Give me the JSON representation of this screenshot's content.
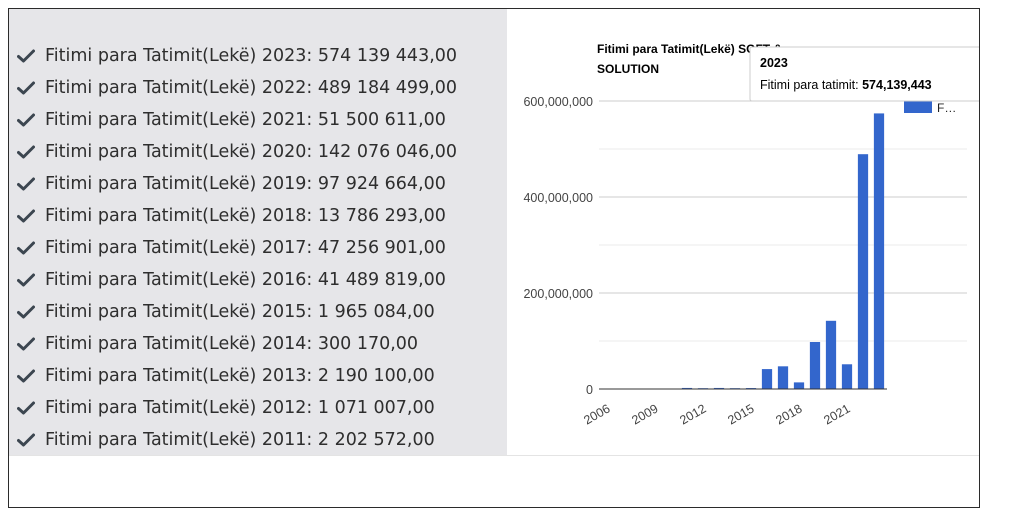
{
  "facts": [
    {
      "label": "Fitimi para Tatimit(Lekë) 2023: 574 139 443,00"
    },
    {
      "label": "Fitimi para Tatimit(Lekë) 2022: 489 184 499,00"
    },
    {
      "label": "Fitimi para Tatimit(Lekë) 2021: 51 500 611,00"
    },
    {
      "label": "Fitimi para Tatimit(Lekë) 2020: 142 076 046,00"
    },
    {
      "label": "Fitimi para Tatimit(Lekë) 2019: 97 924 664,00"
    },
    {
      "label": "Fitimi para Tatimit(Lekë) 2018: 13 786 293,00"
    },
    {
      "label": "Fitimi para Tatimit(Lekë) 2017: 47 256 901,00"
    },
    {
      "label": "Fitimi para Tatimit(Lekë) 2016: 41 489 819,00"
    },
    {
      "label": "Fitimi para Tatimit(Lekë) 2015: 1 965 084,00"
    },
    {
      "label": "Fitimi para Tatimit(Lekë) 2014: 300 170,00"
    },
    {
      "label": "Fitimi para Tatimit(Lekë) 2013: 2 190 100,00"
    },
    {
      "label": "Fitimi para Tatimit(Lekë) 2012: 1 071 007,00"
    },
    {
      "label": "Fitimi para Tatimit(Lekë) 2011: 2 202 572,00"
    }
  ],
  "chart_data": {
    "type": "bar",
    "title_line1": "Fitimi para Tatimit(Lekë) SOFT &",
    "title_line2": "SOLUTION",
    "categories": [
      "2006",
      "2007",
      "2008",
      "2009",
      "2010",
      "2011",
      "2012",
      "2013",
      "2014",
      "2015",
      "2016",
      "2017",
      "2018",
      "2019",
      "2020",
      "2021",
      "2022",
      "2023"
    ],
    "series": [
      {
        "name": "Fitimi para tatimit",
        "legend_label": "F…",
        "color": "#3366cc",
        "values": [
          0,
          0,
          0,
          0,
          0,
          2202572,
          1071007,
          2190100,
          300170,
          1965084,
          41489819,
          47256901,
          13786293,
          97924664,
          142076046,
          51500611,
          489184499,
          574139443
        ]
      }
    ],
    "x_tick_labels": [
      "2006",
      "2009",
      "2012",
      "2015",
      "2018",
      "2021"
    ],
    "y_ticks": [
      0,
      200000000,
      400000000,
      600000000
    ],
    "y_tick_labels": [
      "0",
      "200,000,000",
      "400,000,000",
      "600,000,000"
    ],
    "ylim": [
      0,
      600000000
    ],
    "legend_position": "right",
    "tooltip": {
      "year": "2023",
      "label": "Fitimi para tatimit:",
      "value": "574,139,443"
    },
    "colors": {
      "bar": "#3366cc",
      "grid": "#cccccc",
      "axis": "#333333"
    }
  }
}
